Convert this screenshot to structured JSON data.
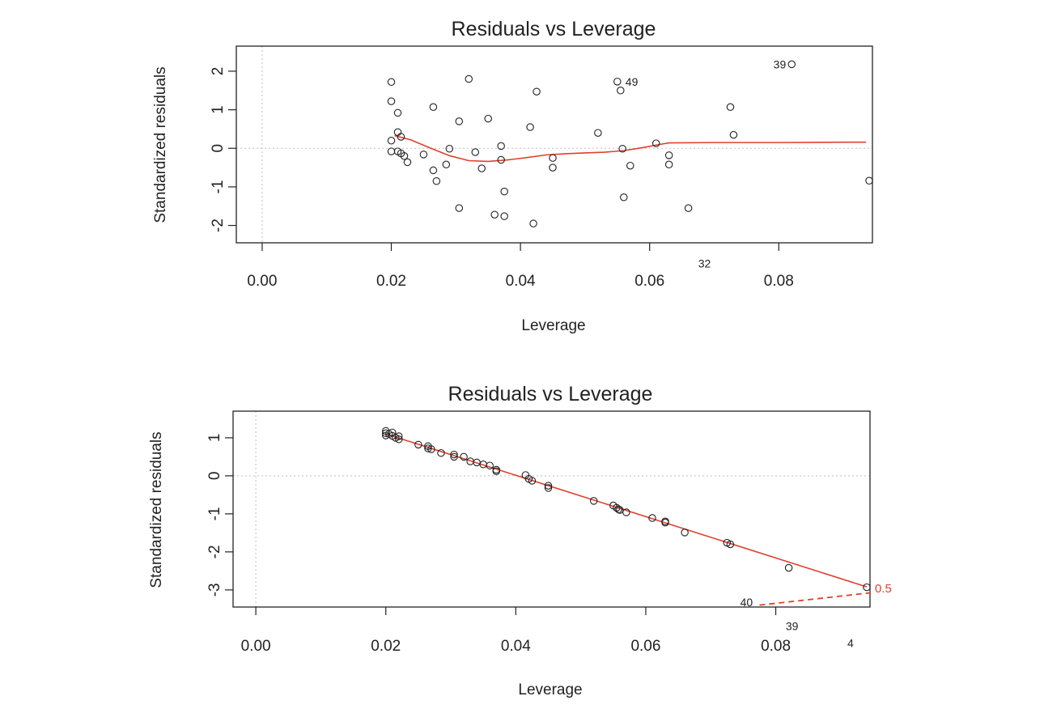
{
  "chart_data": [
    {
      "type": "scatter",
      "title": "Residuals vs Leverage",
      "xlabel": "Leverage",
      "ylabel": "Standardized residuals",
      "xlim": [
        -0.004,
        0.0945
      ],
      "ylim": [
        -2.45,
        2.65
      ],
      "xticks": [
        0.0,
        0.02,
        0.04,
        0.06,
        0.08
      ],
      "xtick_labels": [
        "0.00",
        "0.02",
        "0.04",
        "0.06",
        "0.08"
      ],
      "yticks": [
        -2,
        -1,
        0,
        1,
        2
      ],
      "ytick_labels": [
        "-2",
        "-1",
        "0",
        "1",
        "2"
      ],
      "grid": false,
      "colors": {
        "points": "#222222",
        "smooth": "#e0402e",
        "refline": "#bfbfbf",
        "frame": "#222222"
      },
      "points": {
        "x": [
          0.02,
          0.02,
          0.02,
          0.02,
          0.021,
          0.021,
          0.021,
          0.0215,
          0.0215,
          0.022,
          0.0225,
          0.025,
          0.0265,
          0.0265,
          0.027,
          0.0285,
          0.029,
          0.0305,
          0.0305,
          0.032,
          0.033,
          0.034,
          0.035,
          0.036,
          0.037,
          0.037,
          0.0375,
          0.0375,
          0.0415,
          0.042,
          0.0425,
          0.045,
          0.045,
          0.052,
          0.055,
          0.0555,
          0.0558,
          0.056,
          0.057,
          0.061,
          0.063,
          0.063,
          0.066,
          0.0725,
          0.073,
          0.082,
          0.094
        ],
        "y": [
          1.72,
          1.22,
          0.2,
          -0.08,
          0.42,
          0.92,
          -0.08,
          0.3,
          -0.13,
          -0.2,
          -0.36,
          -0.16,
          1.07,
          -0.57,
          -0.85,
          -0.42,
          -0.01,
          0.7,
          -1.55,
          1.8,
          -0.1,
          -0.52,
          0.77,
          -1.72,
          0.06,
          -0.3,
          -1.12,
          -1.76,
          0.55,
          -1.95,
          1.47,
          -0.25,
          -0.5,
          0.4,
          1.73,
          1.5,
          -0.01,
          -1.27,
          -0.45,
          0.13,
          -0.18,
          -0.42,
          -1.55,
          1.07,
          0.35,
          2.18,
          -0.84
        ]
      },
      "smooth": {
        "x": [
          0.0205,
          0.023,
          0.026,
          0.029,
          0.032,
          0.035,
          0.038,
          0.041,
          0.044,
          0.047,
          0.05,
          0.053,
          0.056,
          0.059,
          0.0615,
          0.063,
          0.07,
          0.08,
          0.09,
          0.0935
        ],
        "y": [
          0.33,
          0.22,
          0.01,
          -0.19,
          -0.32,
          -0.34,
          -0.3,
          -0.24,
          -0.17,
          -0.14,
          -0.12,
          -0.1,
          -0.06,
          0.02,
          0.1,
          0.14,
          0.15,
          0.15,
          0.16,
          0.16
        ]
      },
      "point_labels": [
        {
          "text": "39",
          "x": 0.082,
          "y": 2.18,
          "side": "left"
        },
        {
          "text": "49",
          "x": 0.0555,
          "y": 1.73,
          "side": "right"
        },
        {
          "text": "32",
          "x": 0.0685,
          "y": -2.98,
          "side": "center"
        }
      ],
      "cook_lines": []
    },
    {
      "type": "scatter",
      "title": "Residuals vs Leverage",
      "xlabel": "Leverage",
      "ylabel": "Standardized residuals",
      "xlim": [
        -0.0035,
        0.0945
      ],
      "ylim": [
        -3.45,
        1.7
      ],
      "xticks": [
        0.0,
        0.02,
        0.04,
        0.06,
        0.08
      ],
      "xtick_labels": [
        "0.00",
        "0.02",
        "0.04",
        "0.06",
        "0.08"
      ],
      "yticks": [
        -3,
        -2,
        -1,
        0,
        1
      ],
      "ytick_labels": [
        "-3",
        "-2",
        "-1",
        "0",
        "1"
      ],
      "grid": false,
      "colors": {
        "points": "#222222",
        "smooth": "#e0402e",
        "refline": "#bfbfbf",
        "frame": "#222222"
      },
      "points": {
        "x": [
          0.02,
          0.02,
          0.02,
          0.0205,
          0.021,
          0.021,
          0.0215,
          0.022,
          0.022,
          0.025,
          0.0265,
          0.0265,
          0.027,
          0.0285,
          0.0305,
          0.0305,
          0.032,
          0.033,
          0.034,
          0.035,
          0.036,
          0.037,
          0.037,
          0.0415,
          0.042,
          0.0425,
          0.045,
          0.045,
          0.052,
          0.055,
          0.0555,
          0.0558,
          0.056,
          0.057,
          0.061,
          0.063,
          0.063,
          0.066,
          0.0725,
          0.073,
          0.082,
          0.094
        ],
        "y": [
          1.18,
          1.12,
          1.06,
          1.1,
          1.14,
          1.05,
          1.0,
          1.04,
          0.96,
          0.82,
          0.78,
          0.72,
          0.7,
          0.6,
          0.56,
          0.5,
          0.5,
          0.38,
          0.35,
          0.3,
          0.27,
          0.16,
          0.12,
          0.02,
          -0.08,
          -0.13,
          -0.26,
          -0.32,
          -0.66,
          -0.78,
          -0.84,
          -0.88,
          -0.9,
          -0.96,
          -1.11,
          -1.2,
          -1.23,
          -1.49,
          -1.76,
          -1.8,
          -2.42,
          -2.93
        ]
      },
      "smooth": {
        "x": [
          0.02,
          0.094
        ],
        "y": [
          1.1,
          -2.92
        ]
      },
      "point_labels": [
        {
          "text": "40",
          "x": 0.0755,
          "y": -3.32,
          "side": "center"
        },
        {
          "text": "39",
          "x": 0.0825,
          "y": -3.95,
          "side": "center"
        },
        {
          "text": "4",
          "x": 0.0915,
          "y": -4.4,
          "side": "center"
        }
      ],
      "cook_lines": [
        {
          "label": "0.5",
          "x": [
            0.0775,
            0.0975
          ],
          "y": [
            -3.4,
            -3.02
          ]
        }
      ]
    }
  ]
}
